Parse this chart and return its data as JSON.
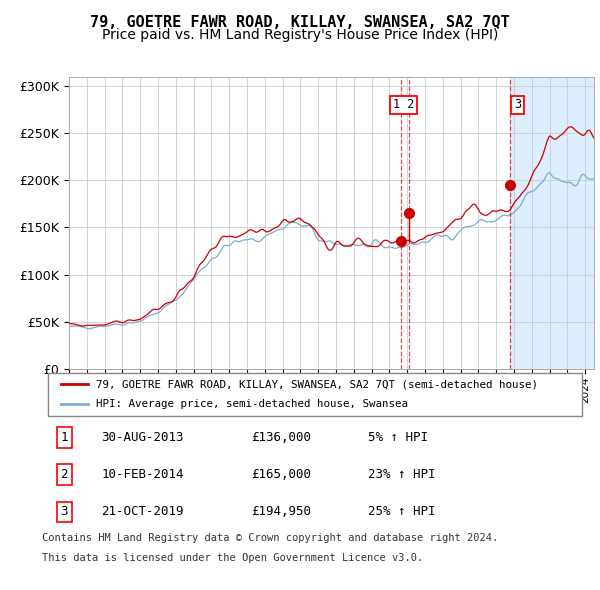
{
  "title": "79, GOETRE FAWR ROAD, KILLAY, SWANSEA, SA2 7QT",
  "subtitle": "Price paid vs. HM Land Registry's House Price Index (HPI)",
  "title_fontsize": 11,
  "subtitle_fontsize": 10,
  "legend_line1": "79, GOETRE FAWR ROAD, KILLAY, SWANSEA, SA2 7QT (semi-detached house)",
  "legend_line2": "HPI: Average price, semi-detached house, Swansea",
  "transactions": [
    {
      "num": 1,
      "date_str": "30-AUG-2013",
      "date_x": 2013.66,
      "price": 136000,
      "label": "5% ↑ HPI"
    },
    {
      "num": 2,
      "date_str": "10-FEB-2014",
      "date_x": 2014.11,
      "price": 165000,
      "label": "23% ↑ HPI"
    },
    {
      "num": 3,
      "date_str": "21-OCT-2019",
      "date_x": 2019.8,
      "price": 194950,
      "label": "25% ↑ HPI"
    }
  ],
  "footnote1": "Contains HM Land Registry data © Crown copyright and database right 2024.",
  "footnote2": "This data is licensed under the Open Government Licence v3.0.",
  "red_line_color": "#cc0000",
  "blue_line_color": "#7aadd4",
  "background_color": "#ffffff",
  "shaded_region_color": "#ddeeff",
  "grid_color": "#cccccc",
  "ylim": [
    0,
    310000
  ],
  "xlim_start": 1995.0,
  "xlim_end": 2024.5,
  "hpi_waypoints": [
    [
      1995.0,
      44000
    ],
    [
      1996.0,
      44500
    ],
    [
      1997.0,
      46000
    ],
    [
      1998.0,
      48000
    ],
    [
      1999.0,
      51000
    ],
    [
      2000.0,
      60000
    ],
    [
      2001.0,
      72000
    ],
    [
      2002.0,
      95000
    ],
    [
      2003.0,
      118000
    ],
    [
      2004.0,
      132000
    ],
    [
      2005.0,
      135000
    ],
    [
      2006.0,
      141000
    ],
    [
      2007.5,
      155000
    ],
    [
      2008.5,
      148000
    ],
    [
      2009.5,
      130000
    ],
    [
      2010.0,
      132000
    ],
    [
      2011.0,
      133000
    ],
    [
      2012.0,
      128000
    ],
    [
      2013.0,
      129000
    ],
    [
      2014.0,
      131000
    ],
    [
      2015.0,
      135000
    ],
    [
      2016.0,
      140000
    ],
    [
      2017.0,
      148000
    ],
    [
      2018.0,
      155000
    ],
    [
      2019.0,
      158000
    ],
    [
      2020.0,
      163000
    ],
    [
      2021.0,
      185000
    ],
    [
      2022.0,
      205000
    ],
    [
      2023.0,
      200000
    ],
    [
      2024.0,
      203000
    ],
    [
      2024.5,
      205000
    ]
  ],
  "prop_waypoints": [
    [
      1995.0,
      46000
    ],
    [
      1996.0,
      46000
    ],
    [
      1997.0,
      47500
    ],
    [
      1998.0,
      50000
    ],
    [
      1999.0,
      53000
    ],
    [
      2000.0,
      63000
    ],
    [
      2001.0,
      76000
    ],
    [
      2002.0,
      100000
    ],
    [
      2003.0,
      123000
    ],
    [
      2004.0,
      138000
    ],
    [
      2005.0,
      140000
    ],
    [
      2006.0,
      147000
    ],
    [
      2007.5,
      162000
    ],
    [
      2008.5,
      153000
    ],
    [
      2009.5,
      133000
    ],
    [
      2010.0,
      135000
    ],
    [
      2011.0,
      136000
    ],
    [
      2012.0,
      131000
    ],
    [
      2013.0,
      132000
    ],
    [
      2014.0,
      134000
    ],
    [
      2015.0,
      140000
    ],
    [
      2016.0,
      147000
    ],
    [
      2017.0,
      157000
    ],
    [
      2018.0,
      165000
    ],
    [
      2019.0,
      168000
    ],
    [
      2020.0,
      175000
    ],
    [
      2021.0,
      205000
    ],
    [
      2022.0,
      240000
    ],
    [
      2023.0,
      248000
    ],
    [
      2024.0,
      252000
    ],
    [
      2024.5,
      255000
    ]
  ]
}
